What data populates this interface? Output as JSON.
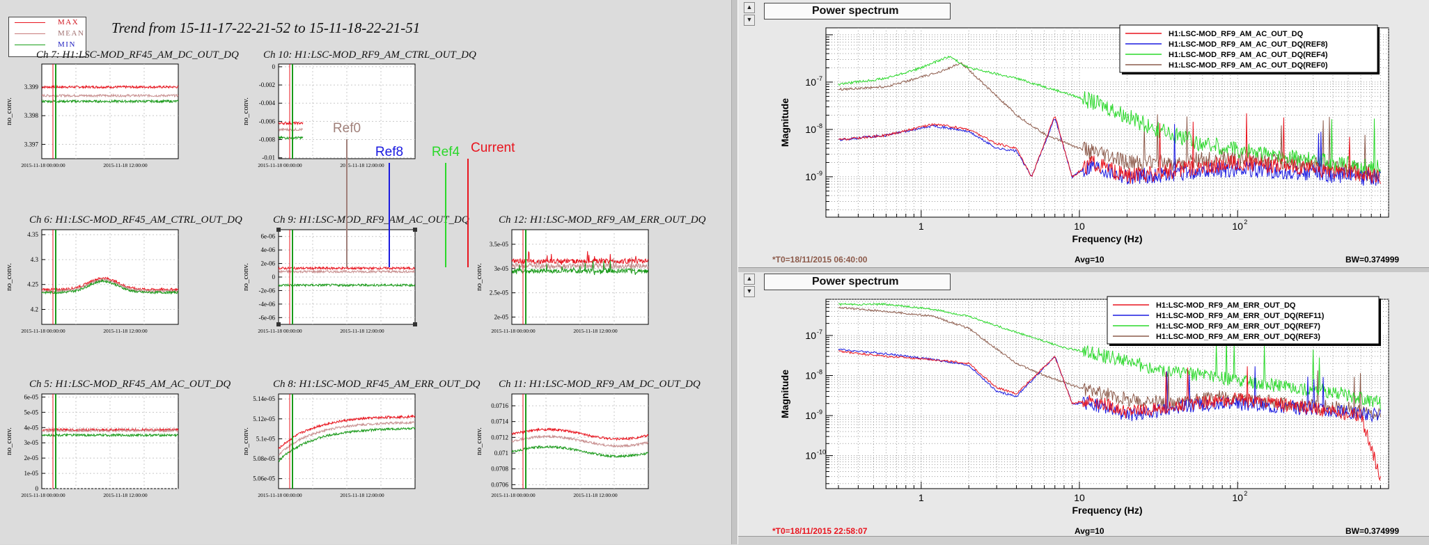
{
  "trend": {
    "title": "Trend from 15-11-17-22-21-52 to 15-11-18-22-21-51",
    "legend": [
      {
        "label": "MAX",
        "color": "#e8141e"
      },
      {
        "label": "MEAN",
        "color": "#c87a7a"
      },
      {
        "label": "MIN",
        "color": "#1aa01a"
      }
    ],
    "x_tick_labels": [
      "2015-11-18 00:00:00",
      "2015-11-18 12:00:00"
    ],
    "y_axis_label": "no_conv.",
    "markers": [
      {
        "label": "Ref0",
        "color": "#a0807a"
      },
      {
        "label": "Ref8",
        "color": "#1a1ae0"
      },
      {
        "label": "Ref4",
        "color": "#2ad82a"
      },
      {
        "label": "Current",
        "color": "#e8141e"
      }
    ]
  },
  "chart_data": [
    {
      "type": "line",
      "title": "Ch 7: H1:LSC-MOD_RF45_AM_DC_OUT_DQ",
      "ylabel": "no_conv.",
      "yticks": [
        "3.399",
        "3.398",
        "3.397"
      ],
      "ylim": [
        3.3965,
        3.3998
      ],
      "series": [
        {
          "name": "MAX",
          "level": 3.399
        },
        {
          "name": "MEAN",
          "level": 3.3987
        },
        {
          "name": "MIN",
          "level": 3.3985
        }
      ]
    },
    {
      "type": "line",
      "title": "Ch 10: H1:LSC-MOD_RF9_AM_CTRL_OUT_DQ",
      "ylabel": "no_conv.",
      "yticks": [
        "0",
        "-0.002",
        "-0.004",
        "-0.006",
        "-0.008",
        "-0.01"
      ],
      "ylim": [
        -0.0101,
        0.0003
      ],
      "series": [
        {
          "name": "MAX",
          "level": -0.0062
        },
        {
          "name": "MEAN",
          "level": -0.0069
        },
        {
          "name": "MIN",
          "level": -0.0078
        }
      ]
    },
    {
      "type": "line",
      "title": "Ch 6: H1:LSC-MOD_RF45_AM_CTRL_OUT_DQ",
      "ylabel": "no_conv.",
      "yticks": [
        "4.35",
        "4.3",
        "4.25",
        "4.2"
      ],
      "ylim": [
        4.17,
        4.36
      ],
      "series": [
        {
          "name": "MAX",
          "level": 4.24
        },
        {
          "name": "MEAN",
          "level": 4.237
        },
        {
          "name": "MIN",
          "level": 4.234
        }
      ]
    },
    {
      "type": "line",
      "title": "Ch 9: H1:LSC-MOD_RF9_AM_AC_OUT_DQ",
      "ylabel": "no_conv.",
      "yticks": [
        "6e-06",
        "4e-06",
        "2e-06",
        "0",
        "-2e-06",
        "-4e-06",
        "-6e-06"
      ],
      "ylim": [
        -7e-06,
        7e-06
      ],
      "series": [
        {
          "name": "MAX",
          "level": 1.3e-06
        },
        {
          "name": "MEAN",
          "level": 8e-07
        },
        {
          "name": "MIN",
          "level": -1.2e-06
        }
      ]
    },
    {
      "type": "line",
      "title": "Ch 12: H1:LSC-MOD_RF9_AM_ERR_OUT_DQ",
      "ylabel": "no_conv.",
      "yticks": [
        "3.5e-05",
        "3e-05",
        "2.5e-05",
        "2e-05"
      ],
      "ylim": [
        1.85e-05,
        3.8e-05
      ],
      "series": [
        {
          "name": "MAX",
          "level": 3.15e-05
        },
        {
          "name": "MEAN",
          "level": 3.05e-05
        },
        {
          "name": "MIN",
          "level": 2.95e-05
        }
      ]
    },
    {
      "type": "line",
      "title": "Ch 5: H1:LSC-MOD_RF45_AM_AC_OUT_DQ",
      "ylabel": "no_conv.",
      "yticks": [
        "6e-05",
        "5e-05",
        "4e-05",
        "3e-05",
        "2e-05",
        "1e-05",
        "0"
      ],
      "ylim": [
        0,
        6.2e-05
      ],
      "series": [
        {
          "name": "MAX",
          "level": 3.85e-05
        },
        {
          "name": "MEAN",
          "level": 3.8e-05
        },
        {
          "name": "MIN",
          "level": 3.5e-05
        }
      ]
    },
    {
      "type": "line",
      "title": "Ch 8: H1:LSC-MOD_RF45_AM_ERR_OUT_DQ",
      "ylabel": "no_conv.",
      "yticks": [
        "5.14e-05",
        "5.12e-05",
        "5.1e-05",
        "5.08e-05",
        "5.06e-05"
      ],
      "ylim": [
        5.05e-05,
        5.145e-05
      ],
      "series": [
        {
          "name": "MAX",
          "level": 5.123e-05
        },
        {
          "name": "MEAN",
          "level": 5.117e-05
        },
        {
          "name": "MIN",
          "level": 5.111e-05
        }
      ]
    },
    {
      "type": "line",
      "title": "Ch 11: H1:LSC-MOD_RF9_AM_DC_OUT_DQ",
      "ylabel": "no_conv.",
      "yticks": [
        "0.0716",
        "0.0714",
        "0.0712",
        "0.071",
        "0.0708",
        "0.0706"
      ],
      "ylim": [
        0.07055,
        0.07175
      ],
      "series": [
        {
          "name": "MAX",
          "level": 0.07124
        },
        {
          "name": "MEAN",
          "level": 0.07115
        },
        {
          "name": "MIN",
          "level": 0.07102
        }
      ]
    },
    {
      "type": "line",
      "title": "Power spectrum",
      "xlabel": "Frequency (Hz)",
      "ylabel": "Magnitude",
      "xscale": "log",
      "yscale": "log",
      "xlim": [
        0.25,
        900
      ],
      "ylim": [
        1.4e-10,
        1.4e-06
      ],
      "series": [
        {
          "name": "H1:LSC-MOD_RF9_AM_AC_OUT_DQ",
          "color": "#e8141e",
          "points": [
            [
              0.3,
              6e-09
            ],
            [
              0.6,
              7.5e-09
            ],
            [
              1.2,
              1.3e-08
            ],
            [
              2,
              1e-08
            ],
            [
              3,
              5e-09
            ],
            [
              4,
              4e-09
            ],
            [
              5,
              1e-09
            ],
            [
              7,
              2e-08
            ],
            [
              9,
              1e-09
            ],
            [
              12,
              2e-09
            ],
            [
              20,
              1e-09
            ],
            [
              50,
              1.5e-09
            ],
            [
              100,
              2e-09
            ],
            [
              300,
              1.5e-09
            ],
            [
              800,
              1e-09
            ]
          ]
        },
        {
          "name": "H1:LSC-MOD_RF9_AM_AC_OUT_DQ(REF8)",
          "color": "#1a1ae0",
          "points": [
            [
              0.3,
              6e-09
            ],
            [
              0.6,
              7.5e-09
            ],
            [
              1.2,
              1.2e-08
            ],
            [
              2,
              9e-09
            ],
            [
              3,
              4e-09
            ],
            [
              4,
              3.5e-09
            ],
            [
              5,
              1e-09
            ],
            [
              7,
              1.8e-08
            ],
            [
              9,
              1e-09
            ],
            [
              12,
              1.8e-09
            ],
            [
              20,
              1e-09
            ],
            [
              50,
              1.2e-09
            ],
            [
              100,
              1.5e-09
            ],
            [
              300,
              1.2e-09
            ],
            [
              800,
              9e-10
            ]
          ]
        },
        {
          "name": "H1:LSC-MOD_RF9_AM_AC_OUT_DQ(REF4)",
          "color": "#2ad82a",
          "points": [
            [
              0.3,
              9e-08
            ],
            [
              0.6,
              1.2e-07
            ],
            [
              1,
              2e-07
            ],
            [
              1.5,
              3.5e-07
            ],
            [
              2,
              2e-07
            ],
            [
              4,
              1.2e-07
            ],
            [
              8,
              6e-08
            ],
            [
              15,
              3e-08
            ],
            [
              30,
              1e-08
            ],
            [
              60,
              5e-09
            ],
            [
              150,
              3e-09
            ],
            [
              400,
              2e-09
            ],
            [
              800,
              1.5e-09
            ]
          ]
        },
        {
          "name": "H1:LSC-MOD_RF9_AM_AC_OUT_DQ(REF0)",
          "color": "#8c5a4a",
          "points": [
            [
              0.3,
              7e-08
            ],
            [
              0.6,
              8e-08
            ],
            [
              1.2,
              1.5e-07
            ],
            [
              1.8,
              2.5e-07
            ],
            [
              2.5,
              9e-08
            ],
            [
              4,
              2e-08
            ],
            [
              6,
              8e-09
            ],
            [
              10,
              4e-09
            ],
            [
              20,
              2e-09
            ],
            [
              40,
              2e-09
            ],
            [
              80,
              2.5e-09
            ],
            [
              200,
              2e-09
            ],
            [
              500,
              1.5e-09
            ],
            [
              800,
              1e-09
            ]
          ]
        }
      ]
    },
    {
      "type": "line",
      "title": "Power spectrum",
      "xlabel": "Frequency (Hz)",
      "ylabel": "Magnitude",
      "xscale": "log",
      "yscale": "log",
      "xlim": [
        0.25,
        900
      ],
      "ylim": [
        1.5e-11,
        8e-07
      ],
      "series": [
        {
          "name": "H1:LSC-MOD_RF9_AM_ERR_OUT_DQ",
          "color": "#e8141e",
          "points": [
            [
              0.3,
              4e-08
            ],
            [
              0.6,
              3e-08
            ],
            [
              1.2,
              2.5e-08
            ],
            [
              2,
              2e-08
            ],
            [
              3,
              5e-09
            ],
            [
              4,
              3.5e-09
            ],
            [
              7,
              3e-08
            ],
            [
              9,
              2e-09
            ],
            [
              12,
              2.5e-09
            ],
            [
              20,
              1.2e-09
            ],
            [
              50,
              2e-09
            ],
            [
              100,
              2.5e-09
            ],
            [
              300,
              1.5e-09
            ],
            [
              600,
              1e-09
            ],
            [
              800,
              3e-11
            ]
          ]
        },
        {
          "name": "H1:LSC-MOD_RF9_AM_ERR_OUT_DQ(REF11)",
          "color": "#1a1ae0",
          "points": [
            [
              0.3,
              4.5e-08
            ],
            [
              0.6,
              3.5e-08
            ],
            [
              1.2,
              2.5e-08
            ],
            [
              2,
              1.8e-08
            ],
            [
              3,
              4e-09
            ],
            [
              4,
              3e-09
            ],
            [
              7,
              3e-08
            ],
            [
              9,
              2e-09
            ],
            [
              12,
              2e-09
            ],
            [
              20,
              1e-09
            ],
            [
              50,
              1.8e-09
            ],
            [
              100,
              2e-09
            ],
            [
              300,
              1.5e-09
            ],
            [
              800,
              1e-09
            ]
          ]
        },
        {
          "name": "H1:LSC-MOD_RF9_AM_ERR_OUT_DQ(REF7)",
          "color": "#2ad82a",
          "points": [
            [
              0.3,
              6e-07
            ],
            [
              0.6,
              6e-07
            ],
            [
              1.2,
              4.5e-07
            ],
            [
              2,
              3e-07
            ],
            [
              4,
              1.2e-07
            ],
            [
              8,
              5e-08
            ],
            [
              15,
              3e-08
            ],
            [
              30,
              1.5e-08
            ],
            [
              60,
              1e-08
            ],
            [
              150,
              6e-09
            ],
            [
              400,
              4e-09
            ],
            [
              800,
              2e-09
            ]
          ]
        },
        {
          "name": "H1:LSC-MOD_RF9_AM_ERR_OUT_DQ(REF3)",
          "color": "#8c5a4a",
          "points": [
            [
              0.3,
              5e-07
            ],
            [
              0.6,
              4e-07
            ],
            [
              1.2,
              3e-07
            ],
            [
              2,
              1.5e-07
            ],
            [
              4,
              2e-08
            ],
            [
              6,
              1e-08
            ],
            [
              10,
              5e-09
            ],
            [
              20,
              2.5e-09
            ],
            [
              40,
              2e-09
            ],
            [
              80,
              3e-09
            ],
            [
              200,
              2e-09
            ],
            [
              500,
              1.5e-09
            ],
            [
              800,
              1e-09
            ]
          ]
        }
      ]
    }
  ],
  "spectra": [
    {
      "title": "Power spectrum",
      "status": {
        "t0": "*T0=18/11/2015 06:40:00",
        "t0_color": "#8c5a4a",
        "avg": "Avg=10",
        "bw": "BW=0.374999"
      },
      "y_ticks": [
        {
          "label": "10",
          "exp": "-7",
          "v": 1e-07
        },
        {
          "label": "10",
          "exp": "-8",
          "v": 1e-08
        },
        {
          "label": "10",
          "exp": "-9",
          "v": 1e-09
        }
      ],
      "x_ticks": [
        {
          "label": "1",
          "exp": "",
          "v": 1
        },
        {
          "label": "10",
          "exp": "",
          "v": 10
        },
        {
          "label": "10",
          "exp": "2",
          "v": 100
        }
      ]
    },
    {
      "title": "Power spectrum",
      "status": {
        "t0": "*T0=18/11/2015 22:58:07",
        "t0_color": "#e8141e",
        "avg": "Avg=10",
        "bw": "BW=0.374999"
      },
      "y_ticks": [
        {
          "label": "10",
          "exp": "-7",
          "v": 1e-07
        },
        {
          "label": "10",
          "exp": "-8",
          "v": 1e-08
        },
        {
          "label": "10",
          "exp": "-9",
          "v": 1e-09
        },
        {
          "label": "10",
          "exp": "-10",
          "v": 1e-10
        }
      ],
      "x_ticks": [
        {
          "label": "1",
          "exp": "",
          "v": 1
        },
        {
          "label": "10",
          "exp": "",
          "v": 10
        },
        {
          "label": "10",
          "exp": "2",
          "v": 100
        }
      ]
    }
  ],
  "spectrum_labels": {
    "xlabel": "Frequency (Hz)",
    "ylabel": "Magnitude"
  }
}
